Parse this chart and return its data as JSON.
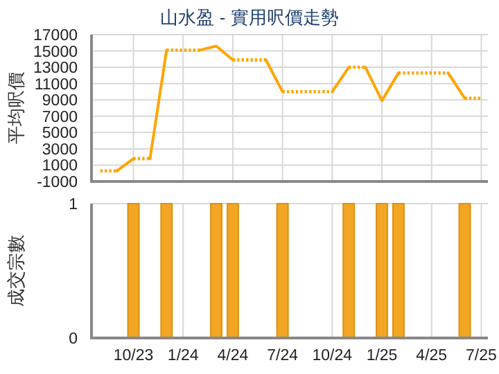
{
  "chart_data": [
    {
      "type": "line",
      "title": "山水盈 - 實用呎價走勢",
      "ylabel": "平均呎價",
      "xlim": [
        "2023-07-15",
        "2025-07-13"
      ],
      "ylim": [
        -1000,
        17000
      ],
      "yticks": [
        -1000,
        1000,
        3000,
        5000,
        7000,
        9000,
        11000,
        13000,
        15000,
        17000
      ],
      "xticks": [
        {
          "value": "2023-10",
          "label": null
        },
        {
          "value": "2024-01",
          "label": null
        },
        {
          "value": "2024-04",
          "label": null
        },
        {
          "value": "2024-07",
          "label": null
        },
        {
          "value": "2024-10",
          "label": null
        },
        {
          "value": "2025-01",
          "label": null
        },
        {
          "value": "2025-04",
          "label": null
        },
        {
          "value": "2025-07",
          "label": null
        }
      ],
      "tick_labels": "y",
      "grid": true,
      "marker": "none",
      "series": [
        {
          "color": "#ffa500",
          "line_style": "dotted",
          "x": [
            "2023-08",
            "2023-09"
          ],
          "values": [
            300,
            300
          ]
        },
        {
          "color": "#ffa500",
          "line_style": "solid",
          "x": [
            "2023-09",
            "2023-10"
          ],
          "values": [
            300,
            1800
          ]
        },
        {
          "color": "#ffa500",
          "line_style": "dotted",
          "x": [
            "2023-10",
            "2023-11"
          ],
          "values": [
            1800,
            1800
          ]
        },
        {
          "color": "#ffa500",
          "line_style": "solid",
          "x": [
            "2023-11",
            "2023-12"
          ],
          "values": [
            1800,
            15100
          ]
        },
        {
          "color": "#ffa500",
          "line_style": "dotted",
          "x": [
            "2023-12",
            "2024-01",
            "2024-02"
          ],
          "values": [
            15100,
            15100,
            15100
          ]
        },
        {
          "color": "#ffa500",
          "line_style": "solid",
          "x": [
            "2024-02",
            "2024-03",
            "2024-04"
          ],
          "values": [
            15100,
            15600,
            13900
          ]
        },
        {
          "color": "#ffa500",
          "line_style": "dotted",
          "x": [
            "2024-04",
            "2024-05",
            "2024-06"
          ],
          "values": [
            13900,
            13900,
            13900
          ]
        },
        {
          "color": "#ffa500",
          "line_style": "solid",
          "x": [
            "2024-06",
            "2024-07"
          ],
          "values": [
            13900,
            10000
          ]
        },
        {
          "color": "#ffa500",
          "line_style": "dotted",
          "x": [
            "2024-07",
            "2024-08",
            "2024-09",
            "2024-10"
          ],
          "values": [
            10000,
            10000,
            10000,
            10000
          ]
        },
        {
          "color": "#ffa500",
          "line_style": "solid",
          "x": [
            "2024-10",
            "2024-11"
          ],
          "values": [
            10000,
            13000
          ]
        },
        {
          "color": "#ffa500",
          "line_style": "dotted",
          "x": [
            "2024-11",
            "2024-12"
          ],
          "values": [
            13000,
            13000
          ]
        },
        {
          "color": "#ffa500",
          "line_style": "solid",
          "x": [
            "2024-12",
            "2025-01",
            "2025-02"
          ],
          "values": [
            13000,
            8900,
            12300
          ]
        },
        {
          "color": "#ffa500",
          "line_style": "dotted",
          "x": [
            "2025-02",
            "2025-03",
            "2025-04",
            "2025-05"
          ],
          "values": [
            12300,
            12300,
            12300,
            12300
          ]
        },
        {
          "color": "#ffa500",
          "line_style": "solid",
          "x": [
            "2025-05",
            "2025-06"
          ],
          "values": [
            12300,
            9200
          ]
        },
        {
          "color": "#ffa500",
          "line_style": "dotted",
          "x": [
            "2025-06",
            "2025-07"
          ],
          "values": [
            9200,
            9200
          ]
        }
      ]
    },
    {
      "type": "bar",
      "ylabel": "成交宗數",
      "xlim": [
        "2023-07-15",
        "2025-07-13"
      ],
      "ylim": [
        0,
        1
      ],
      "yticks": [
        0,
        1
      ],
      "xticks": [
        {
          "value": "2023-10",
          "label": "10/23"
        },
        {
          "value": "2024-01",
          "label": "1/24"
        },
        {
          "value": "2024-04",
          "label": "4/24"
        },
        {
          "value": "2024-07",
          "label": "7/24"
        },
        {
          "value": "2024-10",
          "label": "10/24"
        },
        {
          "value": "2025-01",
          "label": "1/25"
        },
        {
          "value": "2025-04",
          "label": "4/25"
        },
        {
          "value": "2025-07",
          "label": "7/25"
        }
      ],
      "grid": true,
      "x": [
        "2023-10",
        "2023-12",
        "2024-03",
        "2024-04",
        "2024-07",
        "2024-11",
        "2025-01",
        "2025-02",
        "2025-06"
      ],
      "values": [
        1,
        1,
        1,
        1,
        1,
        1,
        1,
        1,
        1
      ],
      "color": "#f2a623"
    }
  ]
}
